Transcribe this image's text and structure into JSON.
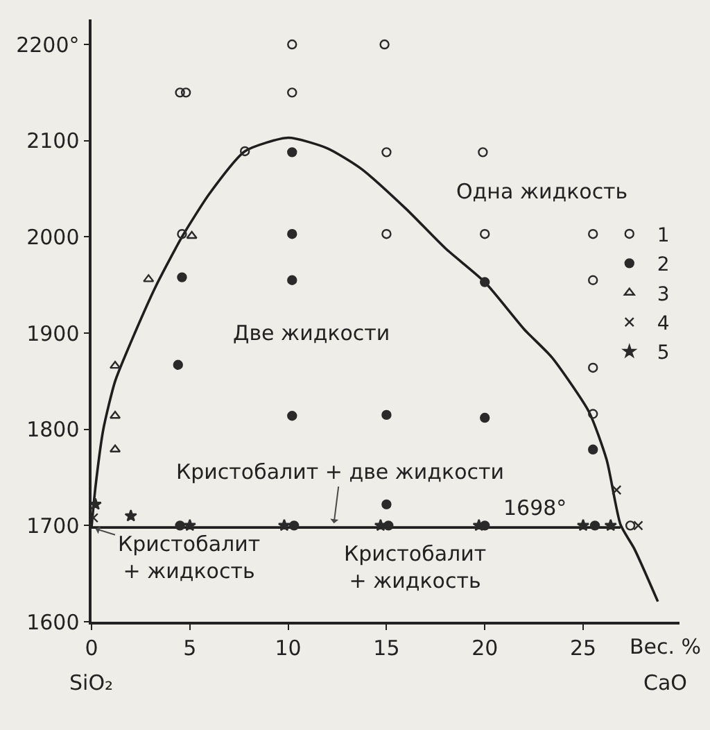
{
  "chart_data": {
    "type": "scatter",
    "xlabel": "Вес. %",
    "xlim": [
      0,
      29.9
    ],
    "ylim": [
      1600,
      2226
    ],
    "xticks": [
      0,
      5,
      10,
      15,
      20,
      25
    ],
    "yticks": [
      1600,
      1700,
      1800,
      1900,
      2000,
      2100,
      {
        "value": 2200,
        "label": "2200°"
      }
    ],
    "grid": false,
    "legend": "right",
    "series": [
      {
        "name": "1",
        "color": "#2a2a2a",
        "marker": "circle-open",
        "x": [
          4.5,
          4.8,
          10.2,
          10.2,
          14.9,
          7.8,
          15,
          19.9,
          4.6,
          15,
          20,
          25.5,
          25.5,
          25.5,
          25.5,
          27.4
        ],
        "values": [
          2150,
          2150,
          2150,
          2200,
          2200,
          2089,
          2088,
          2088,
          2003,
          2003,
          2003,
          2003,
          1955,
          1864,
          1816,
          1700
        ]
      },
      {
        "name": "2",
        "color": "#2a2a2a",
        "marker": "circle",
        "x": [
          10.2,
          10.2,
          10.2,
          4.6,
          20,
          4.4,
          10.2,
          15,
          20,
          25.5,
          15,
          4.5,
          10.3,
          15.1,
          20,
          25.6
        ],
        "values": [
          2088,
          2003,
          1955,
          1958,
          1953,
          1867,
          1814,
          1815,
          1812,
          1779,
          1722,
          1700,
          1700,
          1700,
          1700,
          1700
        ]
      },
      {
        "name": "3",
        "color": "#2a2a2a",
        "marker": "triangle-open",
        "x": [
          2.9,
          5.1,
          1.2,
          1.2,
          1.2
        ],
        "values": [
          1956,
          2001,
          1866,
          1814,
          1779
        ]
      },
      {
        "name": "4",
        "color": "#2a2a2a",
        "marker": "cross",
        "x": [
          26.7,
          27.8,
          0.1
        ],
        "values": [
          1737,
          1700,
          1708
        ]
      },
      {
        "name": "5",
        "color": "#2a2a2a",
        "marker": "star",
        "x": [
          5.0,
          9.8,
          14.7,
          19.7,
          25.0,
          26.4,
          2.0,
          0.2
        ],
        "values": [
          1700,
          1700,
          1700,
          1700,
          1700,
          1700,
          1710,
          1722
        ]
      },
      {
        "type": "line",
        "color": "#1e1e1e",
        "line_style": "solid",
        "x": [
          0,
          0.2,
          0.6,
          1.2,
          2.2,
          3.3,
          4.6,
          6.0,
          7.8,
          10,
          12,
          13.7,
          16,
          18,
          20,
          22,
          23.4,
          25.3,
          26.2,
          26.9,
          27.6,
          28.8
        ],
        "values": [
          1698,
          1740,
          1800,
          1850,
          1900,
          1950,
          2000,
          2045,
          2089,
          2103,
          2092,
          2071,
          2029,
          1988,
          1953,
          1904,
          1875,
          1818,
          1768,
          1701,
          1676,
          1621
        ]
      },
      {
        "type": "line",
        "color": "#1e1e1e",
        "line_style": "solid",
        "x": [
          0,
          26.9
        ],
        "values": [
          1698,
          1698
        ]
      }
    ],
    "annotations": [
      "Одна жидкость",
      "Две жидкости",
      {
        "text": "Кристобалит + две жидкости",
        "x": 12.3,
        "y": 1698
      },
      {
        "text": "Кристобалит\n+ жидкость",
        "x": 0,
        "y": 1698
      },
      "Кристобалит\n+ жидкость",
      {
        "text": "1698°",
        "x": 22.6,
        "y": 1698
      },
      "SiO₂",
      "CaO"
    ]
  }
}
